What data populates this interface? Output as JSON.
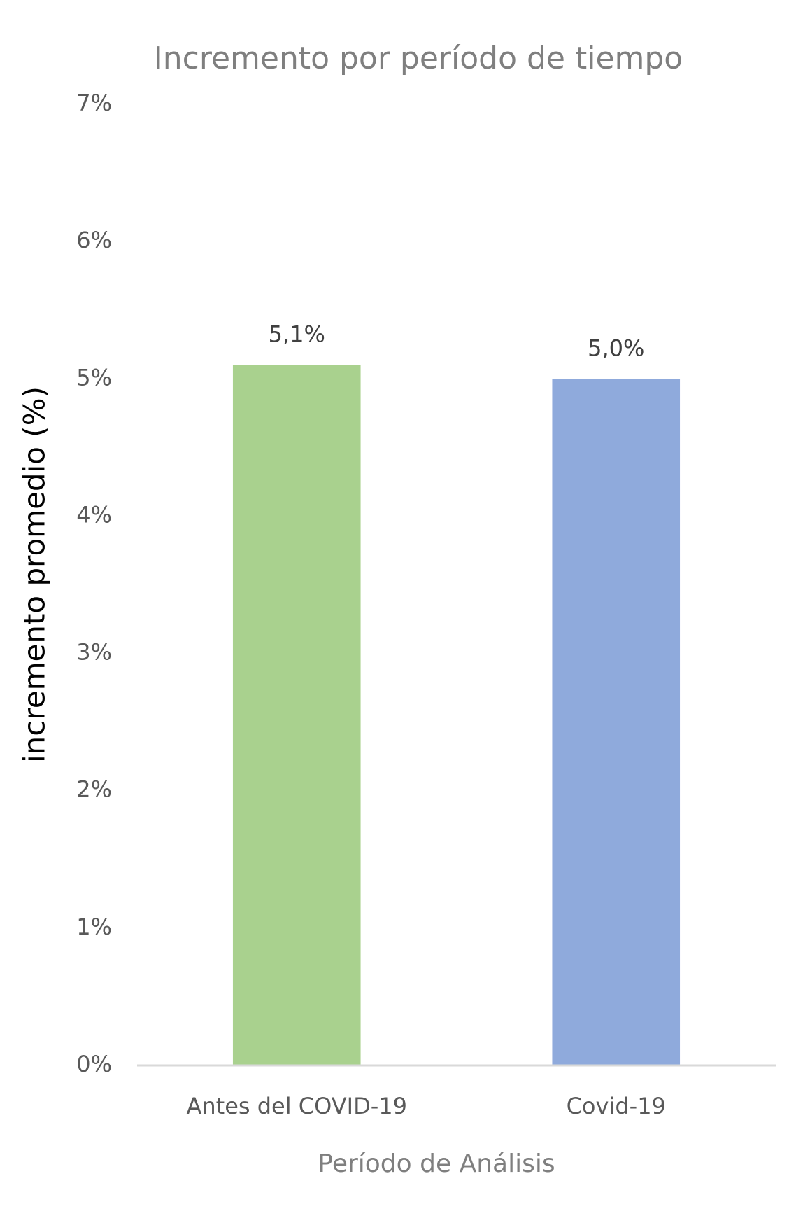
{
  "chart_data": {
    "type": "bar",
    "title": "Incremento por período de tiempo",
    "x_label": "Período de Análisis",
    "y_label": "incremento promedio (%)",
    "categories": [
      "Antes del COVID-19",
      "Covid-19"
    ],
    "values": [
      5.1,
      5.0
    ],
    "value_labels": [
      "5,1%",
      "5,0%"
    ],
    "colors": [
      "#a9d18e",
      "#8faadc"
    ],
    "ylim": [
      0,
      7
    ],
    "yticks": [
      {
        "value": 0,
        "label": "0%"
      },
      {
        "value": 1,
        "label": "1%"
      },
      {
        "value": 2,
        "label": "2%"
      },
      {
        "value": 3,
        "label": "3%"
      },
      {
        "value": 4,
        "label": "4%"
      },
      {
        "value": 5,
        "label": "5%"
      },
      {
        "value": 6,
        "label": "6%"
      },
      {
        "value": 7,
        "label": "7%"
      }
    ],
    "grid": false
  }
}
